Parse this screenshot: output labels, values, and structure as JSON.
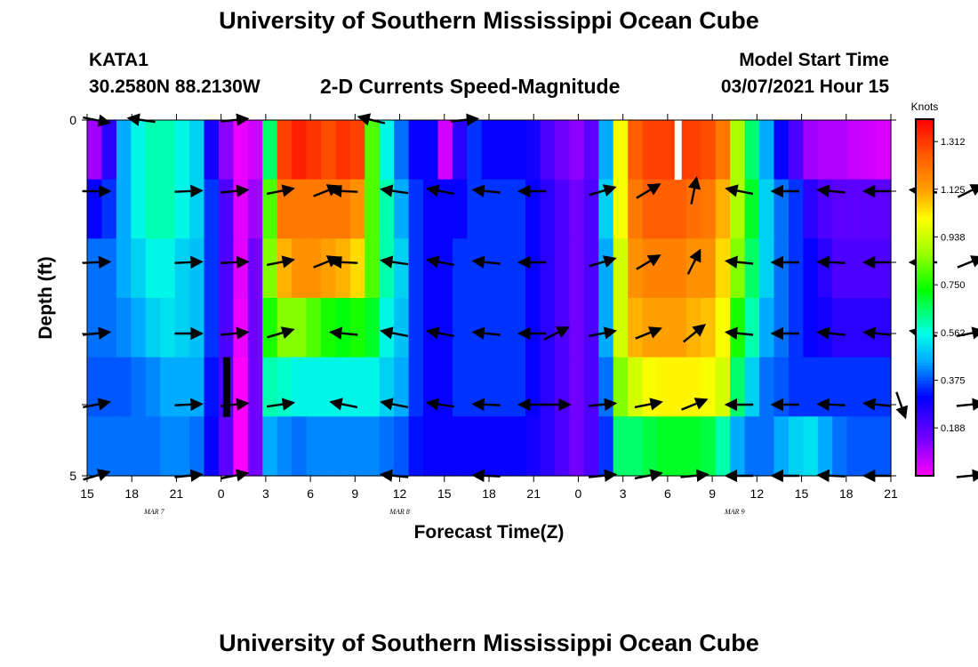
{
  "header": {
    "title": "University of Southern Mississippi Ocean Cube",
    "station_id": "KATA1",
    "station_coords": "30.2580N 88.2130W",
    "plot_title": "2-D Currents Speed-Magnitude",
    "model_start_label": "Model Start Time",
    "model_start_value": "03/07/2021 Hour 15"
  },
  "footer": {
    "title": "University of Southern Mississippi Ocean Cube"
  },
  "chart_data": {
    "type": "heatmap",
    "title": "2-D Currents Speed-Magnitude",
    "xlabel": "Forecast Time(Z)",
    "ylabel": "Depth (ft)",
    "x_hours": [
      15,
      16,
      17,
      18,
      19,
      20,
      21,
      22,
      23,
      0,
      1,
      2,
      3,
      4,
      5,
      6,
      7,
      8,
      9,
      10,
      11,
      12,
      13,
      14,
      15,
      16,
      17,
      18,
      19,
      20,
      21,
      22,
      23,
      0,
      1,
      2,
      3,
      4,
      5,
      6,
      7,
      8,
      9,
      10,
      11,
      12,
      13,
      14,
      15,
      16,
      17,
      18,
      19,
      20,
      21
    ],
    "xticks": [
      "15",
      "18",
      "21",
      "0",
      "3",
      "6",
      "9",
      "12",
      "15",
      "18",
      "21",
      "0",
      "3",
      "6",
      "9",
      "12",
      "15",
      "18",
      "21"
    ],
    "date_labels": [
      {
        "label": "MAR 7",
        "tick_index": 1.5
      },
      {
        "label": "MAR 8",
        "tick_index": 7
      },
      {
        "label": "MAR 9",
        "tick_index": 14.5
      }
    ],
    "y_depth_rows": [
      0,
      1,
      2,
      3,
      4,
      5
    ],
    "yticks": [
      "0",
      "5"
    ],
    "ylim": [
      0,
      5
    ],
    "colorbar": {
      "unit": "Knots",
      "ticks": [
        "1.312",
        "1.125",
        "0.938",
        "0.750",
        "0.562",
        "0.375",
        "0.188"
      ],
      "tick_values": [
        1.312,
        1.125,
        0.938,
        0.75,
        0.562,
        0.375,
        0.188
      ],
      "range": [
        0.0,
        1.4
      ]
    },
    "speed_rows": [
      [
        0.1,
        0.25,
        0.45,
        0.55,
        0.6,
        0.6,
        0.55,
        0.5,
        0.28,
        0.12,
        0.02,
        0.05,
        0.65,
        1.3,
        1.35,
        1.32,
        1.28,
        1.32,
        1.3,
        0.8,
        0.55,
        0.4,
        0.3,
        0.3,
        0.05,
        0.25,
        0.35,
        0.3,
        0.3,
        0.3,
        0.28,
        0.2,
        0.15,
        0.12,
        0.18,
        0.45,
        1.0,
        1.25,
        1.3,
        1.3,
        1.31,
        1.3,
        1.28,
        1.2,
        0.9,
        0.65,
        0.45,
        0.3,
        0.2,
        0.1,
        0.08,
        0.08,
        0.06,
        0.05,
        0.04
      ],
      [
        0.3,
        0.35,
        0.45,
        0.55,
        0.6,
        0.6,
        0.55,
        0.5,
        0.35,
        0.2,
        0.03,
        0.1,
        0.8,
        1.2,
        1.2,
        1.2,
        1.2,
        1.2,
        1.15,
        0.8,
        0.6,
        0.45,
        0.35,
        0.3,
        0.3,
        0.3,
        0.35,
        0.35,
        0.35,
        0.35,
        0.3,
        0.25,
        0.2,
        0.15,
        0.2,
        0.5,
        1.0,
        1.2,
        1.25,
        1.25,
        1.25,
        1.22,
        1.2,
        1.1,
        0.9,
        0.7,
        0.5,
        0.4,
        0.35,
        0.25,
        0.2,
        0.18,
        0.18,
        0.18,
        0.18
      ],
      [
        0.4,
        0.4,
        0.45,
        0.5,
        0.55,
        0.55,
        0.5,
        0.48,
        0.35,
        0.2,
        0.03,
        0.15,
        0.85,
        1.1,
        1.15,
        1.15,
        1.12,
        1.1,
        1.05,
        0.8,
        0.6,
        0.5,
        0.35,
        0.3,
        0.3,
        0.35,
        0.35,
        0.35,
        0.35,
        0.35,
        0.3,
        0.25,
        0.2,
        0.15,
        0.2,
        0.45,
        0.95,
        1.15,
        1.18,
        1.18,
        1.18,
        1.15,
        1.15,
        1.05,
        0.85,
        0.65,
        0.5,
        0.4,
        0.35,
        0.3,
        0.25,
        0.2,
        0.2,
        0.2,
        0.2
      ],
      [
        0.4,
        0.4,
        0.42,
        0.45,
        0.5,
        0.52,
        0.5,
        0.48,
        0.35,
        0.2,
        0.02,
        0.15,
        0.75,
        0.85,
        0.85,
        0.8,
        0.75,
        0.72,
        0.75,
        0.7,
        0.55,
        0.48,
        0.35,
        0.3,
        0.3,
        0.35,
        0.35,
        0.35,
        0.35,
        0.35,
        0.3,
        0.25,
        0.2,
        0.15,
        0.2,
        0.45,
        0.95,
        1.1,
        1.12,
        1.12,
        1.12,
        1.1,
        1.08,
        1.0,
        0.75,
        0.6,
        0.45,
        0.4,
        0.35,
        0.3,
        0.28,
        0.25,
        0.25,
        0.25,
        0.25
      ],
      [
        0.38,
        0.38,
        0.38,
        0.4,
        0.42,
        0.45,
        0.45,
        0.45,
        0.32,
        0.2,
        0.0,
        0.15,
        0.6,
        0.58,
        0.55,
        0.55,
        0.55,
        0.55,
        0.55,
        0.55,
        0.5,
        0.45,
        0.35,
        0.3,
        0.3,
        0.35,
        0.35,
        0.35,
        0.35,
        0.35,
        0.3,
        0.25,
        0.2,
        0.15,
        0.2,
        0.4,
        0.85,
        0.95,
        1.0,
        1.02,
        1.02,
        1.02,
        1.0,
        0.95,
        0.65,
        0.5,
        0.4,
        0.38,
        0.35,
        0.35,
        0.35,
        0.35,
        0.35,
        0.35,
        0.35
      ],
      [
        0.4,
        0.4,
        0.4,
        0.4,
        0.4,
        0.42,
        0.42,
        0.4,
        0.3,
        0.18,
        0.0,
        0.15,
        0.45,
        0.42,
        0.4,
        0.42,
        0.42,
        0.42,
        0.42,
        0.42,
        0.4,
        0.38,
        0.32,
        0.3,
        0.3,
        0.3,
        0.3,
        0.3,
        0.3,
        0.3,
        0.28,
        0.25,
        0.2,
        0.15,
        0.2,
        0.35,
        0.65,
        0.65,
        0.68,
        0.7,
        0.7,
        0.7,
        0.68,
        0.6,
        0.45,
        0.4,
        0.4,
        0.45,
        0.5,
        0.52,
        0.45,
        0.4,
        0.38,
        0.38,
        0.38
      ]
    ],
    "vectors": [
      [
        {
          "h": 0,
          "u": 1,
          "v": -0.2
        },
        {
          "h": 1,
          "u": -1,
          "v": 0.15
        },
        {
          "h": 3,
          "u": 1,
          "v": 0.1
        },
        {
          "h": 6,
          "u": -0.8,
          "v": 0.2
        },
        {
          "h": 8,
          "u": 1,
          "v": 0.1
        }
      ],
      [
        {
          "h": 0,
          "u": 1,
          "v": 0
        },
        {
          "h": 2,
          "u": 1,
          "v": 0.05
        },
        {
          "h": 3,
          "u": 1,
          "v": 0.1
        },
        {
          "h": 4,
          "u": 1,
          "v": 0.2
        },
        {
          "h": 5,
          "u": 1,
          "v": 0.4
        },
        {
          "h": 5.4,
          "u": -1,
          "v": 0.05
        },
        {
          "h": 6.5,
          "u": -1,
          "v": 0.15
        },
        {
          "h": 7.5,
          "u": -1,
          "v": 0.2
        },
        {
          "h": 8.5,
          "u": -1,
          "v": 0.1
        },
        {
          "h": 9.5,
          "u": -1,
          "v": 0
        },
        {
          "h": 11,
          "u": 1,
          "v": 0.3
        },
        {
          "h": 12,
          "u": 1,
          "v": 0.6
        },
        {
          "h": 13,
          "u": 0.2,
          "v": 1
        },
        {
          "h": 14,
          "u": -1,
          "v": 0.2
        },
        {
          "h": 15,
          "u": -1,
          "v": 0
        },
        {
          "h": 16,
          "u": -1,
          "v": 0.1
        },
        {
          "h": 17,
          "u": -1,
          "v": 0
        },
        {
          "h": 18,
          "u": -1,
          "v": 0.1
        },
        {
          "h": 19,
          "u": 1,
          "v": 0.5
        }
      ],
      [
        {
          "h": 0,
          "u": 1,
          "v": 0.05
        },
        {
          "h": 2,
          "u": 1,
          "v": 0.05
        },
        {
          "h": 3,
          "u": 1,
          "v": 0.05
        },
        {
          "h": 4,
          "u": 1,
          "v": 0.2
        },
        {
          "h": 5,
          "u": 1,
          "v": 0.4
        },
        {
          "h": 5.4,
          "u": -1,
          "v": 0.05
        },
        {
          "h": 6.5,
          "u": -1,
          "v": 0.15
        },
        {
          "h": 7.5,
          "u": -1,
          "v": 0.2
        },
        {
          "h": 8.5,
          "u": -1,
          "v": 0.1
        },
        {
          "h": 9.5,
          "u": -1,
          "v": 0
        },
        {
          "h": 11,
          "u": 1,
          "v": 0.3
        },
        {
          "h": 12,
          "u": 1,
          "v": 0.6
        },
        {
          "h": 13,
          "u": 0.5,
          "v": 1
        },
        {
          "h": 14,
          "u": -1,
          "v": 0.1
        },
        {
          "h": 15,
          "u": -1,
          "v": 0
        },
        {
          "h": 16,
          "u": -1,
          "v": 0.05
        },
        {
          "h": 17,
          "u": -1,
          "v": 0
        },
        {
          "h": 18,
          "u": -1,
          "v": 0
        },
        {
          "h": 19,
          "u": 1,
          "v": 0.4
        }
      ],
      [
        {
          "h": 0,
          "u": 1,
          "v": 0.1
        },
        {
          "h": 2,
          "u": 1,
          "v": 0
        },
        {
          "h": 3,
          "u": 1,
          "v": 0.1
        },
        {
          "h": 4,
          "u": 1,
          "v": 0.3
        },
        {
          "h": 5.4,
          "u": -1,
          "v": 0.1
        },
        {
          "h": 6.5,
          "u": -1,
          "v": 0.2
        },
        {
          "h": 7.5,
          "u": -1,
          "v": 0.2
        },
        {
          "h": 8.5,
          "u": -1,
          "v": 0.1
        },
        {
          "h": 9.5,
          "u": -1,
          "v": 0
        },
        {
          "h": 10,
          "u": 1,
          "v": 0.5
        },
        {
          "h": 11,
          "u": 1,
          "v": 0.2
        },
        {
          "h": 12,
          "u": 1,
          "v": 0.4
        },
        {
          "h": 13,
          "u": 1,
          "v": 0.8
        },
        {
          "h": 14,
          "u": -1,
          "v": 0.1
        },
        {
          "h": 15,
          "u": -1,
          "v": 0
        },
        {
          "h": 16,
          "u": -1,
          "v": 0.1
        },
        {
          "h": 17,
          "u": -1,
          "v": 0.1
        },
        {
          "h": 18,
          "u": -1,
          "v": 0.2
        },
        {
          "h": 19,
          "u": 1,
          "v": 0.2
        }
      ],
      [
        {
          "h": 0,
          "u": 1,
          "v": 0.2
        },
        {
          "h": 2,
          "u": 1,
          "v": 0.05
        },
        {
          "h": 3,
          "u": 1,
          "v": 0.1
        },
        {
          "h": 4,
          "u": 1,
          "v": 0.15
        },
        {
          "h": 5.4,
          "u": -1,
          "v": 0.2
        },
        {
          "h": 6.5,
          "u": -1,
          "v": 0.2
        },
        {
          "h": 7.5,
          "u": -1,
          "v": 0.15
        },
        {
          "h": 8.5,
          "u": -1,
          "v": 0.05
        },
        {
          "h": 9.5,
          "u": -1,
          "v": 0
        },
        {
          "h": 10,
          "u": 1,
          "v": 0
        },
        {
          "h": 11,
          "u": 1,
          "v": 0.1
        },
        {
          "h": 12,
          "u": 1,
          "v": 0.2
        },
        {
          "h": 13,
          "u": 1,
          "v": 0.4
        },
        {
          "h": 14,
          "u": -1,
          "v": 0
        },
        {
          "h": 15,
          "u": -1,
          "v": 0
        },
        {
          "h": 16,
          "u": -1,
          "v": 0.05
        },
        {
          "h": 17,
          "u": -1,
          "v": 0.1
        },
        {
          "h": 17.5,
          "u": 0.35,
          "v": -1
        },
        {
          "h": 19,
          "u": 1,
          "v": 0.1
        }
      ],
      [
        {
          "h": 0,
          "u": 1,
          "v": 0.3
        },
        {
          "h": 2,
          "u": 1,
          "v": 0.1
        },
        {
          "h": 3,
          "u": 1,
          "v": 0.2
        },
        {
          "h": 6.5,
          "u": -1,
          "v": 0.1
        },
        {
          "h": 8.5,
          "u": -1,
          "v": 0.05
        },
        {
          "h": 11,
          "u": 1,
          "v": 0.1
        },
        {
          "h": 12,
          "u": 1,
          "v": 0.2
        },
        {
          "h": 13,
          "u": 1,
          "v": 0.1
        },
        {
          "h": 14,
          "u": -1,
          "v": 0
        },
        {
          "h": 15,
          "u": -1,
          "v": 0
        },
        {
          "h": 16,
          "u": -1,
          "v": 0.05
        },
        {
          "h": 17,
          "u": -1,
          "v": 0
        },
        {
          "h": 19,
          "u": 1,
          "v": 0.1
        }
      ]
    ],
    "masked_cells": [
      {
        "row": 0,
        "col": 40.2,
        "color": "#ffffff"
      },
      {
        "row": 4,
        "col": 9.3,
        "color": "#000000"
      }
    ]
  }
}
